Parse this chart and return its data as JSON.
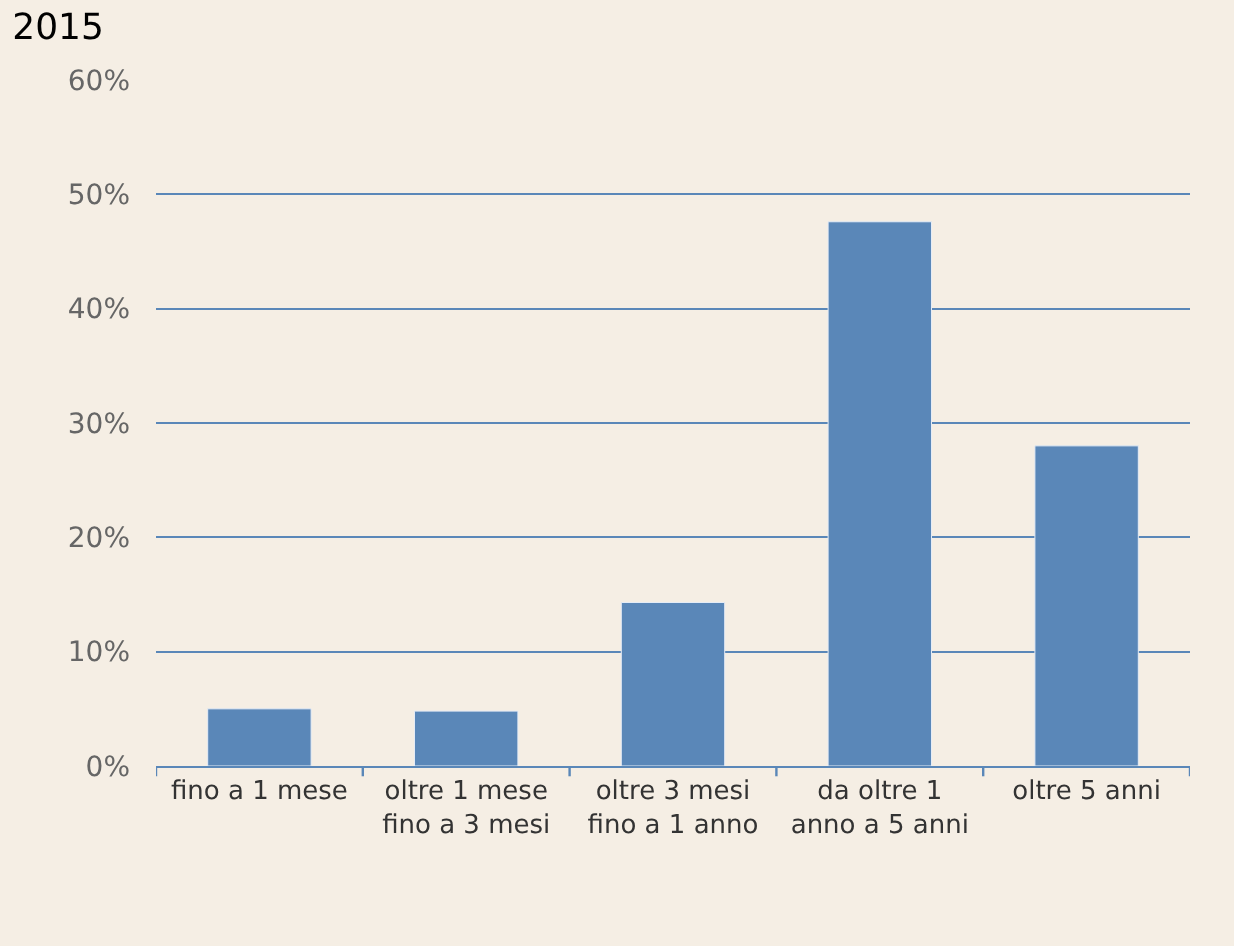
{
  "chart_data": {
    "type": "bar",
    "title": "2015",
    "categories": [
      "fino a 1 mese",
      "oltre 1 mese fino a 3 mesi",
      "oltre 3 mesi fino a 1 anno",
      "da oltre 1 anno a 5 anni",
      "oltre 5 anni"
    ],
    "values": [
      5.0,
      4.8,
      14.3,
      47.6,
      28.0
    ],
    "color": "#5a87b8",
    "ylim": [
      0,
      60
    ],
    "yticks": [
      {
        "value": 0,
        "label": "0%"
      },
      {
        "value": 10,
        "label": "10%"
      },
      {
        "value": 20,
        "label": "20%"
      },
      {
        "value": 30,
        "label": "30%"
      },
      {
        "value": 40,
        "label": "40%"
      },
      {
        "value": 50,
        "label": "50%"
      },
      {
        "value": 60,
        "label": "60%"
      }
    ],
    "grid": "y",
    "legend": false
  }
}
